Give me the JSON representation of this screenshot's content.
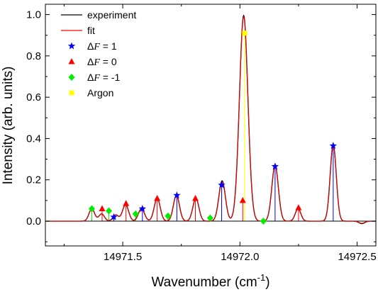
{
  "chart_data": {
    "type": "line",
    "xlabel": "Wavenumber (cm",
    "xlabel_sup": "-1",
    "xlabel_end": ")",
    "ylabel": "Intensity (arb. units)",
    "xlim": [
      14971.17,
      14972.58
    ],
    "ylim": [
      -0.12,
      1.05
    ],
    "xticks": [
      14971.5,
      14972.0,
      14972.5
    ],
    "xtick_labels": [
      "14971.5",
      "14972.0",
      "14972.5"
    ],
    "yticks": [
      0.0,
      0.2,
      0.4,
      0.6,
      0.8,
      1.0
    ],
    "ytick_labels": [
      "0.0",
      "0.2",
      "0.4",
      "0.6",
      "0.8",
      "1.0"
    ],
    "grid": false,
    "legend_position": "top-left",
    "baseline": 0.0,
    "series": [
      {
        "name": "experiment",
        "kind": "line",
        "color": "#000000",
        "peaks": [
          {
            "x": 14971.368,
            "a": 0.06,
            "w": 0.012
          },
          {
            "x": 14971.41,
            "a": 0.035,
            "w": 0.012
          },
          {
            "x": 14971.47,
            "a": 0.03,
            "w": 0.012
          },
          {
            "x": 14971.512,
            "a": 0.08,
            "w": 0.013
          },
          {
            "x": 14971.58,
            "a": 0.06,
            "w": 0.013
          },
          {
            "x": 14971.647,
            "a": 0.11,
            "w": 0.013
          },
          {
            "x": 14971.729,
            "a": 0.125,
            "w": 0.013
          },
          {
            "x": 14971.812,
            "a": 0.11,
            "w": 0.013
          },
          {
            "x": 14971.924,
            "a": 0.195,
            "w": 0.014
          },
          {
            "x": 14972.016,
            "a": 0.995,
            "w": 0.018
          },
          {
            "x": 14972.15,
            "a": 0.27,
            "w": 0.014
          },
          {
            "x": 14972.248,
            "a": 0.06,
            "w": 0.012
          },
          {
            "x": 14972.398,
            "a": 0.37,
            "w": 0.013
          }
        ],
        "dips": [
          {
            "x": 14972.52,
            "a": -0.012,
            "w": 0.012
          }
        ]
      },
      {
        "name": "fit",
        "kind": "line",
        "color": "#ff0000",
        "peaks": [
          {
            "x": 14971.368,
            "a": 0.058,
            "w": 0.012
          },
          {
            "x": 14971.41,
            "a": 0.035,
            "w": 0.012
          },
          {
            "x": 14971.47,
            "a": 0.03,
            "w": 0.012
          },
          {
            "x": 14971.512,
            "a": 0.078,
            "w": 0.013
          },
          {
            "x": 14971.58,
            "a": 0.058,
            "w": 0.013
          },
          {
            "x": 14971.647,
            "a": 0.108,
            "w": 0.013
          },
          {
            "x": 14971.729,
            "a": 0.122,
            "w": 0.013
          },
          {
            "x": 14971.812,
            "a": 0.108,
            "w": 0.013
          },
          {
            "x": 14971.924,
            "a": 0.19,
            "w": 0.014
          },
          {
            "x": 14972.016,
            "a": 0.99,
            "w": 0.018
          },
          {
            "x": 14972.15,
            "a": 0.265,
            "w": 0.014
          },
          {
            "x": 14972.248,
            "a": 0.058,
            "w": 0.012
          },
          {
            "x": 14972.398,
            "a": 0.365,
            "w": 0.013
          }
        ],
        "dips": [
          {
            "x": 14972.52,
            "a": -0.01,
            "w": 0.012
          }
        ]
      },
      {
        "name": "ΔF = 1",
        "name_prefix": "Δ",
        "name_italic": "F",
        "name_suffix": " = 1",
        "kind": "sticks",
        "marker": "star",
        "color": "#0000ff",
        "points": [
          {
            "x": 14971.462,
            "y": 0.02
          },
          {
            "x": 14971.584,
            "y": 0.06
          },
          {
            "x": 14971.731,
            "y": 0.125
          },
          {
            "x": 14971.922,
            "y": 0.175
          },
          {
            "x": 14972.15,
            "y": 0.265
          },
          {
            "x": 14972.398,
            "y": 0.365
          }
        ]
      },
      {
        "name": "ΔF = 0",
        "name_prefix": "Δ",
        "name_italic": "F",
        "name_suffix": " = 0",
        "kind": "sticks",
        "marker": "triangle",
        "color": "#ff0000",
        "points": [
          {
            "x": 14971.412,
            "y": 0.06
          },
          {
            "x": 14971.514,
            "y": 0.085
          },
          {
            "x": 14971.647,
            "y": 0.11
          },
          {
            "x": 14971.81,
            "y": 0.11
          },
          {
            "x": 14972.012,
            "y": 0.1
          },
          {
            "x": 14972.25,
            "y": 0.065
          }
        ]
      },
      {
        "name": "ΔF = -1",
        "name_prefix": "Δ",
        "name_italic": "F",
        "name_suffix": " = -1",
        "kind": "sticks",
        "marker": "diamond",
        "color": "#00ee00",
        "points": [
          {
            "x": 14971.368,
            "y": 0.06
          },
          {
            "x": 14971.441,
            "y": 0.05
          },
          {
            "x": 14971.555,
            "y": 0.035
          },
          {
            "x": 14971.693,
            "y": 0.025
          },
          {
            "x": 14971.873,
            "y": 0.015
          },
          {
            "x": 14972.1,
            "y": 0.0
          }
        ]
      },
      {
        "name": "Argon",
        "kind": "sticks",
        "marker": "square",
        "color": "#ffff00",
        "points": [
          {
            "x": 14972.02,
            "y": 0.91
          }
        ]
      }
    ]
  }
}
